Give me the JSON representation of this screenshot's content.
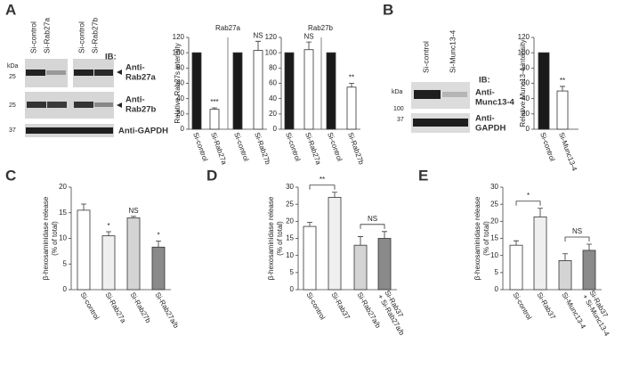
{
  "panels": [
    "A",
    "B",
    "C",
    "D",
    "E"
  ],
  "blots": [
    {
      "lanes": [
        "Si-control",
        "Si-Rab27a",
        "Si-control",
        "Si-Rab27b"
      ],
      "ib": "IB:",
      "unit": "kDa",
      "markers": [
        "25",
        "25",
        "37"
      ],
      "antibodies": [
        [
          "Anti-",
          "Rab27a"
        ],
        [
          "Anti-",
          "Rab27b"
        ],
        [
          "Anti-GAPDH"
        ]
      ]
    },
    {
      "lanes": [
        "Si-control",
        "Si-Munc13-4"
      ],
      "ib": "IB:",
      "unit": "kDa",
      "markers": [
        "100",
        "37"
      ],
      "antibodies": [
        [
          "Anti-",
          "Munc13-4"
        ],
        [
          "Anti-",
          "GAPDH"
        ]
      ]
    }
  ],
  "chart_data": [
    {
      "type": "bar",
      "title": "Rab27a",
      "ylabel": "Relative Rab27s intensity",
      "categories": [
        "Si-control",
        "Si-Rab27a",
        "Si-control",
        "Si-Rab27b"
      ],
      "values": [
        100,
        26,
        100,
        103
      ],
      "errors": [
        null,
        2,
        null,
        12
      ],
      "colors": [
        "#1a1a1a",
        "#ffffff",
        "#1a1a1a",
        "#ffffff"
      ],
      "annotations": [
        null,
        "***",
        null,
        "NS"
      ],
      "ylim": [
        0,
        120
      ],
      "yticks": [
        0,
        20,
        40,
        60,
        80,
        100,
        120
      ]
    },
    {
      "type": "bar",
      "title": "Rab27b",
      "categories": [
        "Si-control",
        "Si-Rab27a",
        "Si-control",
        "Si-Rab27b"
      ],
      "values": [
        100,
        104,
        100,
        55
      ],
      "errors": [
        null,
        10,
        null,
        5
      ],
      "colors": [
        "#1a1a1a",
        "#ffffff",
        "#1a1a1a",
        "#ffffff"
      ],
      "annotations": [
        null,
        "NS",
        null,
        "**"
      ],
      "ylim": [
        0,
        120
      ],
      "yticks": [
        0,
        20,
        40,
        60,
        80,
        100,
        120
      ]
    },
    {
      "type": "bar",
      "ylabel": "Relative Munc13-4 intensity",
      "categories": [
        "Si-control",
        "Si-Munc13-4"
      ],
      "values": [
        100,
        50
      ],
      "errors": [
        null,
        6
      ],
      "colors": [
        "#1a1a1a",
        "#ffffff"
      ],
      "annotations": [
        null,
        "**"
      ],
      "ylim": [
        0,
        120
      ],
      "yticks": [
        0,
        20,
        40,
        60,
        80,
        100,
        120
      ]
    },
    {
      "type": "bar",
      "ylabel": [
        "β-hexosaminidase release",
        "(% of total)"
      ],
      "categories": [
        "Si-control",
        "Si-Rab27a",
        "Si-Rab27b",
        "Si-Rab27a/b"
      ],
      "values": [
        15.5,
        10.5,
        14,
        8.3
      ],
      "errors": [
        1.2,
        0.8,
        0.3,
        1.2
      ],
      "colors": [
        "#ffffff",
        "#efefef",
        "#d4d4d4",
        "#8a8a8a"
      ],
      "annotations": [
        null,
        "*",
        "NS",
        "*"
      ],
      "ylim": [
        0,
        20
      ],
      "yticks": [
        0,
        5,
        10,
        15,
        20
      ]
    },
    {
      "type": "bar",
      "ylabel": [
        "β-hexosaminidase release",
        "(% of total)"
      ],
      "categories": [
        "Si-control",
        "Si-Rab37",
        "Si-Rab27a/b",
        [
          "Si-Rab37",
          "+ Si-Rab27a/b"
        ]
      ],
      "values": [
        18.5,
        27,
        13,
        15
      ],
      "errors": [
        1.2,
        1.5,
        2.5,
        2
      ],
      "colors": [
        "#ffffff",
        "#efefef",
        "#d4d4d4",
        "#8a8a8a"
      ],
      "brackets": [
        {
          "between": [
            0,
            1
          ],
          "label": "**"
        },
        {
          "between": [
            2,
            3
          ],
          "label": "NS"
        }
      ],
      "ylim": [
        0,
        30
      ],
      "yticks": [
        0,
        5,
        10,
        15,
        20,
        25,
        30
      ]
    },
    {
      "type": "bar",
      "ylabel": [
        "β-hexosaminidase release",
        "(% of total)"
      ],
      "categories": [
        "Si-control",
        "Si-Rab37",
        "Si-Munc13-4",
        [
          "Si-Rab37",
          "+ Si-Munc13-4"
        ]
      ],
      "values": [
        13,
        21.3,
        8.5,
        11.5
      ],
      "errors": [
        1.3,
        2.5,
        2,
        1.8
      ],
      "colors": [
        "#ffffff",
        "#efefef",
        "#d4d4d4",
        "#8a8a8a"
      ],
      "brackets": [
        {
          "between": [
            0,
            1
          ],
          "label": "*"
        },
        {
          "between": [
            2,
            3
          ],
          "label": "NS"
        }
      ],
      "ylim": [
        0,
        30
      ],
      "yticks": [
        0,
        5,
        10,
        15,
        20,
        25,
        30
      ]
    }
  ]
}
